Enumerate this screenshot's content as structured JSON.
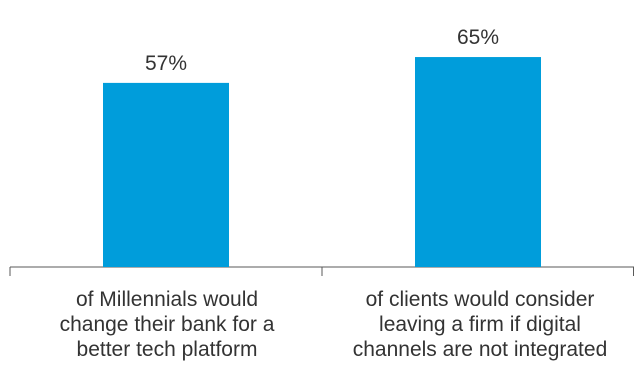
{
  "chart_data": {
    "type": "bar",
    "categories": [
      "of Millennials would\nchange their bank for a\nbetter tech platform",
      "of clients would consider\nleaving a firm if digital\nchannels are not integrated"
    ],
    "values": [
      57,
      65
    ],
    "data_labels": [
      "57%",
      "65%"
    ],
    "title": "",
    "xlabel": "",
    "ylabel": "",
    "ylim": [
      0,
      100
    ],
    "grid": false,
    "legend": "none",
    "bar_color": "#009ddb",
    "axis_color": "#595959",
    "text_color": "#333333"
  }
}
